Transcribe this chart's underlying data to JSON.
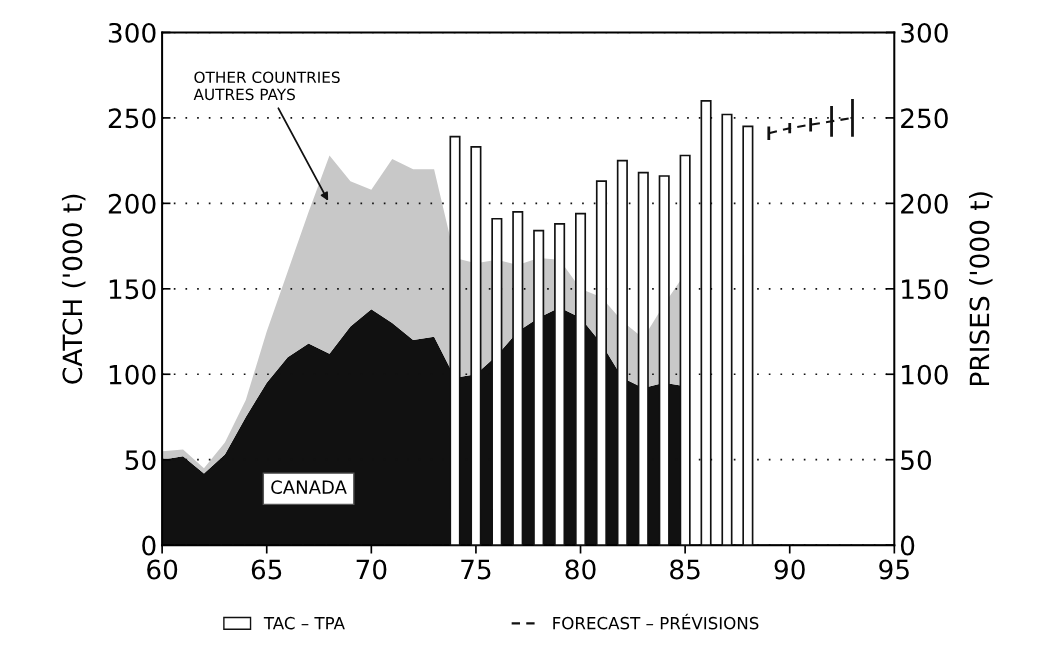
{
  "chart_data": {
    "type": "area",
    "stacked": true,
    "xlabel": null,
    "ylabel": "CATCH ('000 t)",
    "y2label": "PRISES ('000 t)",
    "xlim": [
      60,
      95
    ],
    "xticks": [
      60,
      65,
      70,
      75,
      80,
      85,
      90,
      95
    ],
    "ylim": [
      0,
      300
    ],
    "yticks": [
      0,
      50,
      100,
      150,
      200,
      250,
      300
    ],
    "y2lim": [
      0,
      300
    ],
    "y2ticks": [
      0,
      50,
      100,
      150,
      200,
      250,
      300
    ],
    "grid": "y",
    "legend": "bottom",
    "series": [
      {
        "color": "#111111",
        "x": [
          60,
          61,
          62,
          63,
          64,
          65,
          66,
          67,
          68,
          69,
          70,
          71,
          72,
          73,
          74,
          75,
          76,
          77,
          78,
          79,
          80,
          81,
          82,
          83,
          84,
          85
        ],
        "values": [
          50,
          52,
          42,
          53,
          75,
          95,
          110,
          118,
          112,
          128,
          138,
          130,
          120,
          122,
          98,
          100,
          111,
          125,
          133,
          139,
          133,
          118,
          98,
          92,
          95,
          93
        ]
      },
      {
        "color": "#c8c8c8",
        "x": [
          60,
          61,
          62,
          63,
          64,
          65,
          66,
          67,
          68,
          69,
          70,
          71,
          72,
          73,
          74,
          75,
          76,
          77,
          78,
          79,
          80,
          81,
          82,
          83,
          84,
          85
        ],
        "values": [
          5,
          4,
          3,
          7,
          10,
          30,
          50,
          77,
          116,
          85,
          70,
          96,
          100,
          98,
          70,
          65,
          56,
          39,
          35,
          28,
          17,
          27,
          33,
          29,
          46,
          66
        ]
      },
      {
        "type": "bar",
        "axis": "y2",
        "name": "TAC – TPA",
        "color": "#ffffff",
        "x": [
          74,
          75,
          76,
          77,
          78,
          79,
          80,
          81,
          82,
          83,
          84,
          85,
          86,
          87,
          88
        ],
        "values": [
          239,
          233,
          191,
          195,
          184,
          188,
          194,
          213,
          225,
          218,
          216,
          228,
          260,
          252,
          245
        ]
      },
      {
        "type": "line",
        "axis": "y2",
        "name": "FORECAST – PRÉVISIONS",
        "color": "#111111",
        "line_style": "dashed",
        "x": [
          89,
          90,
          91,
          92,
          93
        ],
        "values": [
          241,
          244,
          246,
          248,
          250
        ],
        "errors": [
          4,
          3,
          4,
          9,
          11
        ]
      }
    ],
    "annotations": [
      "OTHER COUNTRIES\nAUTRES PAYS",
      "CANADA"
    ]
  }
}
